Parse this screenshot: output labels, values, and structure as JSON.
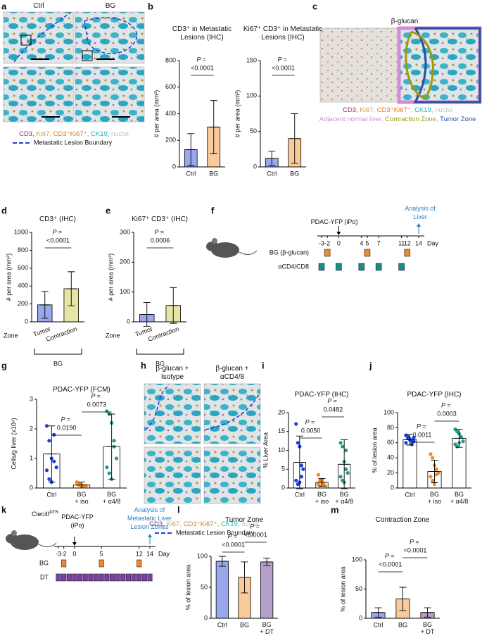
{
  "chart_data": [
    {
      "type": "bar",
      "title": "CD3⁺ in Metastatic Lesions (IHC)",
      "y_label": "# per area  (mm²)",
      "categories": [
        "Ctrl",
        "BG"
      ],
      "colors": [
        "#1c3fd8",
        "#f28c1e"
      ],
      "values": [
        130,
        300
      ],
      "errors": [
        120,
        200
      ],
      "ylim": [
        0,
        800
      ],
      "yticks": [
        0,
        200,
        400,
        600,
        800
      ],
      "p_prefix": "P =",
      "p_values": [
        "<0.0001"
      ]
    },
    {
      "type": "bar",
      "title": "Ki67⁺ CD3⁺ in Metastatic Lesions (IHC)",
      "y_label": "# per area  (mm²)",
      "categories": [
        "Ctrl",
        "BG"
      ],
      "colors": [
        "#1c3fd8",
        "#f28c1e"
      ],
      "values": [
        12,
        40
      ],
      "errors": [
        10,
        35
      ],
      "ylim": [
        0,
        150
      ],
      "yticks": [
        0,
        50,
        100,
        150
      ],
      "p_prefix": "P =",
      "p_values": [
        "<0.0001"
      ]
    },
    {
      "type": "bar",
      "title": "CD3⁺ (IHC)",
      "y_label": "# per area  (mm²)",
      "categories": [
        "Tumor",
        "Contraction"
      ],
      "colors": [
        "#1c3fd8",
        "#c5c83a"
      ],
      "colored_labels": true,
      "x_row_label": "Zone",
      "group_label": "BG",
      "values": [
        190,
        370
      ],
      "errors": [
        150,
        190
      ],
      "ylim": [
        0,
        1000
      ],
      "yticks": [
        0,
        200,
        400,
        600,
        800,
        1000
      ],
      "p_prefix": "P =",
      "p_values": [
        "<0.0001"
      ]
    },
    {
      "type": "bar",
      "title": "Ki67⁺ CD3⁺ (IHC)",
      "y_label": "# per area  (mm²)",
      "categories": [
        "Tumor",
        "Contraction"
      ],
      "colors": [
        "#1c3fd8",
        "#c5c83a"
      ],
      "colored_labels": true,
      "x_row_label": "Zone",
      "group_label": "BG",
      "values": [
        25,
        55
      ],
      "errors": [
        40,
        60
      ],
      "ylim": [
        0,
        300
      ],
      "yticks": [
        0,
        100,
        200,
        300
      ],
      "p_prefix": "P =",
      "p_values": [
        "0.0006"
      ]
    },
    {
      "type": "bar",
      "title": "PDAC-YFP (FCM)",
      "y_label": "Cells/g liver  (x10⁶)",
      "categories": [
        "Ctrl",
        "BG + iso",
        "BG + α4/8"
      ],
      "colors": [
        "#1c3fd8",
        "#f28c1e",
        "#239a8c"
      ],
      "values": [
        1.15,
        0.1,
        1.4
      ],
      "errors": [
        0.95,
        0.1,
        1.1
      ],
      "points": [
        [
          2.1,
          1.6,
          1.0,
          0.9,
          0.7,
          0.6,
          0.3,
          0.2,
          1.8
        ],
        [
          0.2,
          0.15,
          0.1,
          0.05,
          0.08,
          0.12,
          0.1,
          0.05
        ],
        [
          2.6,
          2.5,
          2.2,
          1.6,
          1.0,
          0.7,
          0.5,
          0.3,
          1.4
        ]
      ],
      "ylim": [
        0,
        3
      ],
      "yticks": [
        0,
        1,
        2,
        3
      ],
      "p_prefix": "P =",
      "p_values": [
        "0.0190",
        "0.0073"
      ]
    },
    {
      "type": "bar",
      "title": "PDAC-YFP (IHC)",
      "y_label": "% Liver Area",
      "categories": [
        "Ctrl",
        "BG + iso",
        "BG + α4/8"
      ],
      "colors": [
        "#1c3fd8",
        "#f28c1e",
        "#239a8c"
      ],
      "values": [
        6.8,
        1.5,
        6.3
      ],
      "errors": [
        7,
        1,
        6.5
      ],
      "points": [
        [
          17,
          12,
          11,
          6,
          5,
          2,
          1,
          1.5,
          3
        ],
        [
          3.5,
          2,
          1.5,
          1,
          0.5,
          1,
          0.5,
          2
        ],
        [
          12,
          11,
          7,
          5,
          4,
          3,
          2,
          1.5,
          10
        ]
      ],
      "ylim": [
        0,
        20
      ],
      "yticks": [
        0,
        5,
        10,
        15,
        20
      ],
      "p_prefix": "P =",
      "p_values": [
        "0.0050",
        "0.0482"
      ]
    },
    {
      "type": "bar",
      "title": "PDAC-YFP (IHC)",
      "y_label": "% of lesion area",
      "categories": [
        "Ctrl",
        "BG + iso",
        "BG + α4/8"
      ],
      "colors": [
        "#1c3fd8",
        "#f28c1e",
        "#239a8c"
      ],
      "values": [
        64,
        22,
        66
      ],
      "errors": [
        7,
        15,
        12
      ],
      "points": [
        [
          70,
          68,
          65,
          63,
          62,
          60,
          66,
          64,
          58,
          67
        ],
        [
          45,
          40,
          30,
          25,
          20,
          15,
          10,
          5,
          18
        ],
        [
          78,
          75,
          72,
          68,
          62,
          58,
          55,
          60
        ]
      ],
      "ylim": [
        0,
        100
      ],
      "yticks": [
        0,
        20,
        40,
        60,
        80,
        100
      ],
      "p_prefix": "P =",
      "p_values": [
        "0.0011",
        "0.0003"
      ]
    },
    {
      "type": "bar",
      "title": "Tumor Zone",
      "y_label": "% of lesion area",
      "categories": [
        "Ctrl",
        "BG",
        "BG + DT"
      ],
      "colors": [
        "#1c3fd8",
        "#f28c1e",
        "#5b2a86"
      ],
      "values": [
        92,
        66,
        91
      ],
      "errors": [
        8,
        25,
        6
      ],
      "ylim": [
        0,
        100
      ],
      "yticks": [
        0,
        50,
        100
      ],
      "p_prefix": "P =",
      "p_values": [
        "<0.0001",
        "<0.0001"
      ]
    },
    {
      "type": "bar",
      "title": "Contraction Zone",
      "y_label": "% of lesion area",
      "categories": [
        "Ctrl",
        "BG",
        "BG + DT"
      ],
      "colors": [
        "#1c3fd8",
        "#f28c1e",
        "#5b2a86"
      ],
      "values": [
        10,
        33,
        10
      ],
      "errors": [
        8,
        20,
        8
      ],
      "ylim": [
        0,
        100
      ],
      "yticks": [
        0,
        50,
        100
      ],
      "p_prefix": "P =",
      "p_values": [
        "<0.0001",
        "<0.0001"
      ]
    }
  ],
  "panel_labels": [
    "a",
    "b",
    "c",
    "d",
    "e",
    "f",
    "g",
    "h",
    "i",
    "j",
    "k",
    "l",
    "m"
  ],
  "stain_legend": [
    {
      "text": "CD3,",
      "color": "#8b2f8b"
    },
    {
      "text": "Ki67,",
      "color": "#d9a441"
    },
    {
      "text": "CD3⁺Ki67⁺,",
      "color": "#e07b20"
    },
    {
      "text": "CK19,",
      "color": "#1fb3c4"
    },
    {
      "text": "nuclei",
      "color": "#b5c4d4"
    }
  ],
  "boundary_label": "Metastatic Lesion Boundary",
  "panel_a": {
    "headers": [
      "Ctrl",
      "BG"
    ]
  },
  "panel_c": {
    "title": "β-glucan",
    "zones": [
      {
        "text": "Adjacent normal liver,",
        "color": "#d58ad8"
      },
      {
        "text": "Contraction Zone,",
        "color": "#9a9a10"
      },
      {
        "text": "Tumor Zone",
        "color": "#2a4fa0"
      }
    ]
  },
  "panel_h": {
    "headers": [
      "β-glucan + Isotype",
      "β-glucan + αCD4/8"
    ]
  },
  "panel_f": {
    "injection": "PDAC-YFP (iPo)",
    "analysis": "Analysis of Liver",
    "days": [
      -3,
      -2,
      0,
      4,
      5,
      7,
      11,
      12,
      14
    ],
    "day_label": "Day",
    "rows": [
      {
        "label": "BG (β-glucan)",
        "color": "#ee8a2c",
        "days": [
          -2,
          5,
          12
        ]
      },
      {
        "label": "αCD4/CD8",
        "color": "#1e8c86",
        "days": [
          -3,
          0,
          4,
          7,
          11
        ]
      }
    ]
  },
  "panel_k": {
    "mouse": "Clec4f",
    "mouse_sup": "DTR",
    "injection": "PDAC-YFP (iPo)",
    "analysis": "Analysis of Metastatic Liver Lesion Zones",
    "days": [
      -3,
      -2,
      0,
      5,
      12,
      14
    ],
    "day_label": "Day",
    "rows": [
      {
        "label": "BG",
        "color": "#ee8a2c",
        "days": [
          -2,
          5,
          12
        ]
      },
      {
        "label": "DT",
        "color": "#7b3fa8",
        "days": [
          -3,
          -2,
          -1,
          0,
          1,
          2,
          3,
          4,
          5,
          6,
          7,
          8,
          9,
          10,
          11,
          12,
          13,
          14
        ]
      }
    ]
  }
}
